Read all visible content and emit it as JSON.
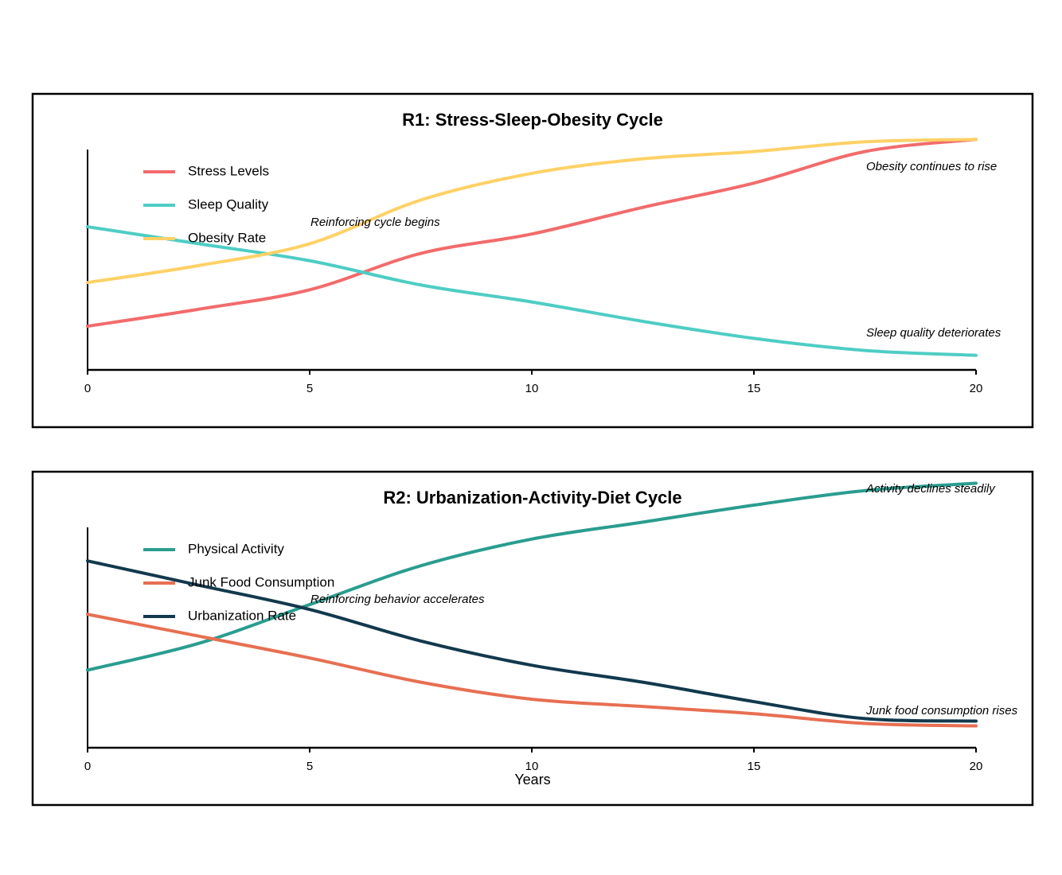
{
  "chart_data": [
    {
      "type": "line",
      "title": "R1: Stress-Sleep-Obesity Cycle",
      "x": [
        0,
        2.5,
        5,
        7.5,
        10,
        12.5,
        15,
        17.5,
        20
      ],
      "series": [
        {
          "name": "Stress Levels",
          "color": "#f26b6b",
          "values": [
            18,
            25,
            33,
            48,
            56,
            67,
            77,
            90,
            95
          ]
        },
        {
          "name": "Sleep Quality",
          "color": "#4ecdc4",
          "values": [
            59,
            52,
            45,
            35,
            28,
            20,
            13,
            8,
            6
          ]
        },
        {
          "name": "Obesity Rate",
          "color": "#ffd166",
          "values": [
            36,
            43,
            52,
            70,
            81,
            87,
            90,
            94,
            95
          ]
        }
      ],
      "annotations": [
        "Reinforcing cycle begins",
        "Obesity continues to rise",
        "Sleep quality deteriorates"
      ],
      "xlim": [
        0,
        20
      ],
      "xticks": [
        0,
        5,
        10,
        15,
        20
      ],
      "ylim": [
        0,
        110
      ],
      "legend": "upper left"
    },
    {
      "type": "line",
      "title": "R2: Urbanization-Activity-Diet Cycle",
      "x": [
        0,
        2.5,
        5,
        7.5,
        10,
        12.5,
        15,
        17.5,
        20
      ],
      "series": [
        {
          "name": "Physical Activity",
          "color": "#2a9d8f",
          "values": [
            32,
            43,
            59,
            75,
            86,
            93,
            100,
            106,
            109
          ]
        },
        {
          "name": "Junk Food Consumption",
          "color": "#e76f51",
          "values": [
            55,
            46,
            37,
            27,
            20,
            17,
            14,
            10,
            9
          ]
        },
        {
          "name": "Urbanization Rate",
          "color": "#12394d",
          "values": [
            77,
            67,
            57,
            44,
            34,
            27,
            19,
            12,
            11
          ]
        }
      ],
      "annotations": [
        "Reinforcing behavior accelerates",
        "Activity declines steadily",
        "Junk food consumption rises"
      ],
      "xlabel": "Years",
      "xlim": [
        0,
        20
      ],
      "xticks": [
        0,
        5,
        10,
        15,
        20
      ],
      "ylim": [
        0,
        110
      ],
      "legend": "upper left"
    }
  ]
}
